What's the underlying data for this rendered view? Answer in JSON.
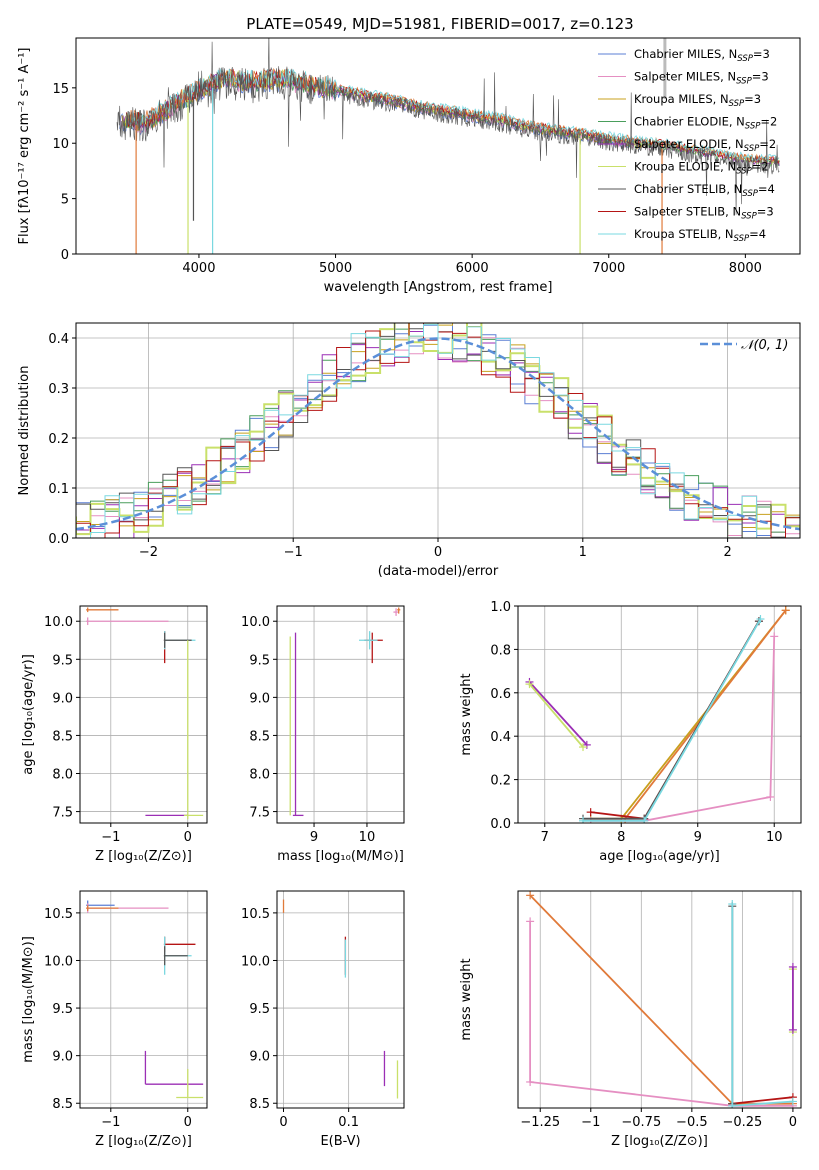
{
  "title": "PLATE=0549, MJD=51981, FIBERID=0017, z=0.123",
  "colors": {
    "chabrier_miles": "#5b7fd4",
    "salpeter_miles": "#e58fc2",
    "kroupa_miles": "#c8a01e",
    "chabrier_elodie": "#4a9e5c",
    "salpeter_elodie": "#9b2fb5",
    "kroupa_elodie": "#c9e06a",
    "chabrier_stelib": "#555555",
    "salpeter_stelib": "#b51515",
    "kroupa_stelib": "#7ad8e0",
    "orange": "#e07a3a",
    "gauss": "#5b8fd8"
  },
  "chart_data": [
    {
      "id": "spectrum",
      "type": "line",
      "xlabel": "wavelength [Angstrom, rest frame]",
      "ylabel": "Flux [fλ10⁻¹⁷ erg cm⁻² s⁻¹ A⁻¹]",
      "xlim": [
        3100,
        8400
      ],
      "ylim": [
        0,
        19.5
      ],
      "xticks": [
        4000,
        5000,
        6000,
        7000,
        8000
      ],
      "yticks": [
        0,
        5,
        10,
        15
      ],
      "grid": false,
      "legend_position": "top-right",
      "legend": [
        {
          "label": "Chabrier MILES, N",
          "sub": "SSP",
          "value": "=3",
          "color_key": "chabrier_miles"
        },
        {
          "label": "Salpeter MILES, N",
          "sub": "SSP",
          "value": "=3",
          "color_key": "salpeter_miles"
        },
        {
          "label": "Kroupa MILES, N",
          "sub": "SSP",
          "value": "=3",
          "color_key": "kroupa_miles"
        },
        {
          "label": "Chabrier ELODIE, N",
          "sub": "SSP",
          "value": "=2",
          "color_key": "chabrier_elodie"
        },
        {
          "label": "Salpeter ELODIE, N",
          "sub": "SSP",
          "value": "=2",
          "color_key": "salpeter_elodie"
        },
        {
          "label": "Kroupa ELODIE, N",
          "sub": "SSP",
          "value": "=2",
          "color_key": "kroupa_elodie"
        },
        {
          "label": "Chabrier STELIB, N",
          "sub": "SSP",
          "value": "=4",
          "color_key": "chabrier_stelib"
        },
        {
          "label": "Salpeter STELIB, N",
          "sub": "SSP",
          "value": "=3",
          "color_key": "salpeter_stelib"
        },
        {
          "label": "Kroupa STELIB, N",
          "sub": "SSP",
          "value": "=4",
          "color_key": "kroupa_stelib"
        }
      ],
      "continuum": [
        [
          3400,
          12
        ],
        [
          3600,
          11.5
        ],
        [
          3800,
          13
        ],
        [
          4000,
          14.5
        ],
        [
          4200,
          15.5
        ],
        [
          4400,
          15.2
        ],
        [
          4600,
          15.5
        ],
        [
          4800,
          15
        ],
        [
          5000,
          14.5
        ],
        [
          5200,
          14
        ],
        [
          5400,
          13.6
        ],
        [
          5600,
          13
        ],
        [
          5800,
          12.6
        ],
        [
          6000,
          12.2
        ],
        [
          6200,
          11.8
        ],
        [
          6400,
          11.2
        ],
        [
          6600,
          10.8
        ],
        [
          6800,
          10.5
        ],
        [
          7000,
          10.1
        ],
        [
          7200,
          9.7
        ],
        [
          7400,
          9.5
        ],
        [
          7600,
          9
        ],
        [
          7800,
          8.6
        ],
        [
          8000,
          8.2
        ],
        [
          8200,
          8
        ]
      ],
      "dips": [
        {
          "x": 3540,
          "y": 0,
          "color_key": "orange"
        },
        {
          "x": 3920,
          "y": 0,
          "color_key": "kroupa_elodie"
        },
        {
          "x": 3960,
          "y": 3,
          "color_key": "chabrier_stelib"
        },
        {
          "x": 4100,
          "y": 0,
          "color_key": "kroupa_stelib"
        },
        {
          "x": 6790,
          "y": 0,
          "color_key": "kroupa_elodie"
        },
        {
          "x": 7390,
          "y": 0,
          "color_key": "orange"
        }
      ]
    },
    {
      "id": "residuals",
      "type": "histogram",
      "xlabel": "(data-model)/error",
      "ylabel": "Normed distribution",
      "xlim": [
        -2.5,
        2.5
      ],
      "ylim": [
        0,
        0.43
      ],
      "xticks": [
        -2,
        -1,
        0,
        1,
        2
      ],
      "yticks": [
        0.0,
        0.1,
        0.2,
        0.3,
        0.4
      ],
      "grid": true,
      "legend_position": "top-right",
      "curve_label": "𝒩(0, 1)",
      "bin_width": 0.1
    },
    {
      "id": "age_vs_Z",
      "type": "errorbar",
      "xlabel": "Z [log₁₀(Z/Z⊙)]",
      "ylabel": "age  [log₁₀(age/yr)]",
      "xlim": [
        -1.4,
        0.25
      ],
      "ylim": [
        7.35,
        10.2
      ],
      "xticks": [
        -1,
        0
      ],
      "yticks": [
        7.5,
        8.0,
        8.5,
        9.0,
        9.5,
        10.0
      ],
      "grid": true
    },
    {
      "id": "age_vs_mass",
      "type": "errorbar",
      "xlabel": "mass [log₁₀(M/M⊙)]",
      "ylabel": "",
      "xlim": [
        8.3,
        10.7
      ],
      "ylim": [
        7.35,
        10.2
      ],
      "xticks": [
        9,
        10
      ],
      "yticks": [
        7.5,
        8.0,
        8.5,
        9.0,
        9.5,
        10.0
      ],
      "grid": true
    },
    {
      "id": "weight_vs_age",
      "type": "line",
      "xlabel": "age  [log₁₀(age/yr)]",
      "ylabel": "mass weight",
      "xlim": [
        6.65,
        10.35
      ],
      "ylim": [
        0,
        1.0
      ],
      "xticks": [
        7,
        8,
        9,
        10
      ],
      "yticks": [
        0.0,
        0.2,
        0.4,
        0.6,
        0.8,
        1.0
      ],
      "grid": true,
      "series": [
        {
          "color_key": "kroupa_miles",
          "points": [
            [
              7.6,
              0.02
            ],
            [
              8.0,
              0.02
            ],
            [
              10.15,
              0.98
            ]
          ]
        },
        {
          "color_key": "orange",
          "points": [
            [
              8.05,
              0.02
            ],
            [
              10.15,
              0.98
            ]
          ]
        },
        {
          "color_key": "salpeter_miles",
          "points": [
            [
              7.6,
              0.01
            ],
            [
              8.3,
              0.01
            ],
            [
              9.95,
              0.12
            ],
            [
              10.0,
              0.86
            ]
          ]
        },
        {
          "color_key": "salpeter_elodie",
          "points": [
            [
              6.8,
              0.65
            ],
            [
              7.55,
              0.36
            ]
          ]
        },
        {
          "color_key": "kroupa_elodie",
          "points": [
            [
              6.8,
              0.64
            ],
            [
              7.5,
              0.35
            ]
          ]
        },
        {
          "color_key": "salpeter_stelib",
          "points": [
            [
              7.6,
              0.05
            ],
            [
              8.3,
              0.02
            ],
            [
              9.8,
              0.93
            ]
          ]
        },
        {
          "color_key": "chabrier_stelib",
          "points": [
            [
              7.5,
              0.02
            ],
            [
              8.3,
              0.02
            ],
            [
              9.8,
              0.93
            ]
          ]
        },
        {
          "color_key": "kroupa_stelib",
          "points": [
            [
              7.5,
              0.01
            ],
            [
              8.3,
              0.01
            ],
            [
              9.82,
              0.94
            ]
          ]
        }
      ]
    },
    {
      "id": "mass_vs_Z",
      "type": "errorbar",
      "xlabel": "Z [log₁₀(Z/Z⊙)]",
      "ylabel": "mass [log₁₀(M/M⊙)]",
      "xlim": [
        -1.4,
        0.25
      ],
      "ylim": [
        8.45,
        10.73
      ],
      "xticks": [
        -1,
        0
      ],
      "yticks": [
        8.5,
        9.0,
        9.5,
        10.0,
        10.5
      ],
      "grid": true
    },
    {
      "id": "mass_vs_EBV",
      "type": "errorbar",
      "xlabel": "E(B-V)",
      "ylabel": "",
      "xlim": [
        -0.01,
        0.185
      ],
      "ylim": [
        8.45,
        10.73
      ],
      "xticks": [
        0.0,
        0.1
      ],
      "yticks": [
        8.5,
        9.0,
        9.5,
        10.0,
        10.5
      ],
      "grid": true
    },
    {
      "id": "weight_vs_Z",
      "type": "line",
      "xlabel": "Z [log₁₀(Z/Z⊙)]",
      "ylabel": "mass weight",
      "xlim": [
        -1.36,
        0.04
      ],
      "ylim": [
        0,
        1.0
      ],
      "xticks": [
        -1.25,
        -1.0,
        -0.75,
        -0.5,
        -0.25,
        0.0
      ],
      "grid": true,
      "series": [
        {
          "color_key": "orange",
          "points": [
            [
              -1.3,
              0.98
            ],
            [
              -0.3,
              0.02
            ],
            [
              0,
              0.02
            ]
          ]
        },
        {
          "color_key": "salpeter_miles",
          "points": [
            [
              -1.3,
              0.86
            ],
            [
              -1.3,
              0.12
            ],
            [
              -0.3,
              0.01
            ],
            [
              0,
              0.01
            ]
          ]
        },
        {
          "color_key": "salpeter_stelib",
          "points": [
            [
              -0.3,
              0.02
            ],
            [
              0,
              0.05
            ]
          ]
        },
        {
          "color_key": "chabrier_stelib",
          "points": [
            [
              -0.3,
              0.93
            ],
            [
              -0.3,
              0.02
            ]
          ]
        },
        {
          "color_key": "kroupa_stelib",
          "points": [
            [
              -0.3,
              0.94
            ],
            [
              -0.3,
              0.01
            ],
            [
              0,
              0.03
            ]
          ]
        },
        {
          "color_key": "kroupa_elodie",
          "points": [
            [
              0,
              0.64
            ],
            [
              0,
              0.35
            ]
          ]
        },
        {
          "color_key": "salpeter_elodie",
          "points": [
            [
              0,
              0.65
            ],
            [
              0,
              0.36
            ]
          ]
        }
      ]
    }
  ]
}
